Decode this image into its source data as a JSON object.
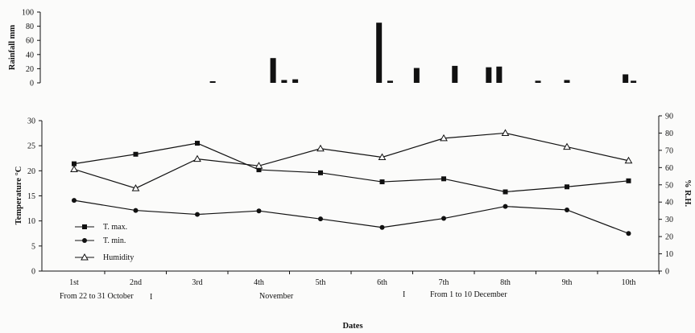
{
  "chart_data": [
    {
      "type": "bar",
      "ylabel": "Rainfall mm",
      "ylim": [
        0,
        100
      ],
      "yticks": [
        "0",
        "20",
        "40",
        "60",
        "80",
        "100"
      ],
      "bars": [
        {
          "x": 3.25,
          "value": 2
        },
        {
          "x": 4.23,
          "value": 35
        },
        {
          "x": 4.41,
          "value": 4
        },
        {
          "x": 4.59,
          "value": 5
        },
        {
          "x": 5.95,
          "value": 85
        },
        {
          "x": 6.13,
          "value": 3
        },
        {
          "x": 6.56,
          "value": 21
        },
        {
          "x": 7.18,
          "value": 24
        },
        {
          "x": 7.73,
          "value": 22
        },
        {
          "x": 7.9,
          "value": 23
        },
        {
          "x": 8.53,
          "value": 3
        },
        {
          "x": 9.0,
          "value": 4
        },
        {
          "x": 9.95,
          "value": 12
        },
        {
          "x": 10.08,
          "value": 3
        }
      ]
    },
    {
      "type": "line",
      "categories": [
        "1st",
        "2nd",
        "3rd",
        "4th",
        "5th",
        "6th",
        "7th",
        "8th",
        "9th",
        "10th"
      ],
      "xlabel": "Dates",
      "ylabel": "Temperature °C",
      "y2label": "% R.H.",
      "ylim": [
        0,
        30
      ],
      "y2lim": [
        0,
        90
      ],
      "yticks": [
        "0",
        "5",
        "10",
        "15",
        "20",
        "25",
        "30"
      ],
      "y2ticks": [
        "0",
        "10",
        "20",
        "30",
        "40",
        "50",
        "60",
        "70",
        "80",
        "90"
      ],
      "series": [
        {
          "name": "T. max.",
          "marker": "square",
          "axis": "left",
          "values": [
            21.4,
            23.3,
            25.5,
            20.2,
            19.6,
            17.8,
            18.4,
            15.8,
            16.8,
            18.0
          ]
        },
        {
          "name": "T. min.",
          "marker": "circle",
          "axis": "left",
          "values": [
            14.1,
            12.1,
            11.3,
            12.0,
            10.4,
            8.7,
            10.5,
            12.9,
            12.2,
            7.5
          ]
        },
        {
          "name": "Humidity",
          "marker": "triangle",
          "axis": "right",
          "values": [
            59,
            48,
            65,
            61,
            71,
            66,
            77,
            80,
            72,
            64
          ]
        }
      ],
      "legend_position": "bottom-left",
      "periods": [
        "From 22 to 31 October",
        "November",
        "From 1 to 10 December"
      ],
      "period_separator": "I"
    }
  ]
}
